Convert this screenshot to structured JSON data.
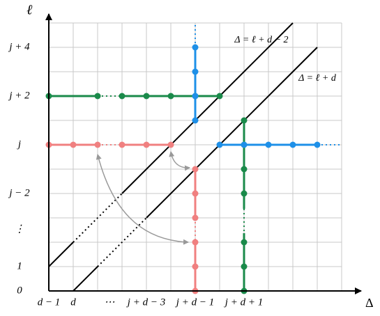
{
  "axes": {
    "x_label": "Δ",
    "y_label": "ℓ"
  },
  "y_ticks": [
    "0",
    "1",
    "⋮",
    "j − 2",
    "j",
    "j + 2",
    "j + 4"
  ],
  "x_ticks": [
    "d − 1",
    "d",
    "⋯",
    "j + d − 3",
    "j + d − 1",
    "j + d + 1"
  ],
  "lines": [
    "Δ = ℓ + d − 2",
    "Δ = ℓ + d"
  ]
}
